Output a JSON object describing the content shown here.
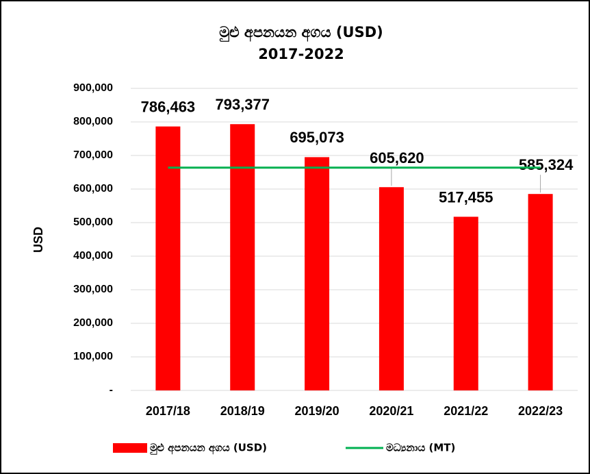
{
  "chart_data": {
    "type": "bar",
    "title": "මුළු අපනයන අගය (USD)",
    "subtitle": "2017-2022",
    "y_label": "USD",
    "categories": [
      "2017/18",
      "2018/19",
      "2019/20",
      "2020/21",
      "2021/22",
      "2022/23"
    ],
    "series": [
      {
        "name": "මුළු අපනයන අගය  (USD)",
        "type": "bar",
        "color": "#ff0000",
        "values": [
          786463,
          793377,
          695073,
          605620,
          517455,
          585324
        ],
        "value_labels": [
          "786,463",
          "793,377",
          "695,073",
          "605,620",
          "517,455",
          "585,324"
        ]
      },
      {
        "name": "මධ්‍යනාය  (MT)",
        "type": "line",
        "color": "#00b050",
        "values": [
          663885,
          663885,
          663885,
          663885,
          663885,
          663885
        ]
      }
    ],
    "ylim": [
      0,
      900000
    ],
    "yticks": [
      {
        "value": 0,
        "label": "-"
      },
      {
        "value": 100000,
        "label": "100,000"
      },
      {
        "value": 200000,
        "label": "200,000"
      },
      {
        "value": 300000,
        "label": "300,000"
      },
      {
        "value": 400000,
        "label": "400,000"
      },
      {
        "value": 500000,
        "label": "500,000"
      },
      {
        "value": 600000,
        "label": "600,000"
      },
      {
        "value": 700000,
        "label": "700,000"
      },
      {
        "value": 800000,
        "label": "800,000"
      },
      {
        "value": 900000,
        "label": "900,000"
      }
    ],
    "grid": true,
    "legend": "bottom"
  }
}
